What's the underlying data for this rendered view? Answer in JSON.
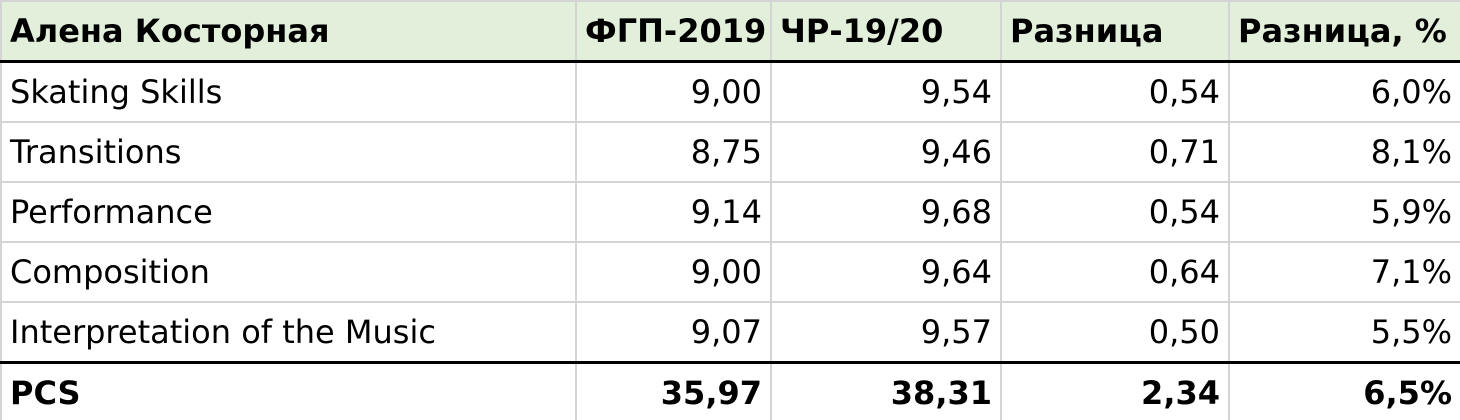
{
  "table": {
    "header": [
      "Алена Косторная",
      "ФГП-2019",
      "ЧР-19/20",
      "Разница",
      "Разница, %"
    ],
    "rows": [
      [
        "Skating Skills",
        "9,00",
        "9,54",
        "0,54",
        "6,0%"
      ],
      [
        "Transitions",
        "8,75",
        "9,46",
        "0,71",
        "8,1%"
      ],
      [
        "Performance",
        "9,14",
        "9,68",
        "0,54",
        "5,9%"
      ],
      [
        "Composition",
        "9,00",
        "9,64",
        "0,64",
        "7,1%"
      ],
      [
        "Interpretation of the Music",
        "9,07",
        "9,57",
        "0,50",
        "5,5%"
      ]
    ],
    "total": [
      "PCS",
      "35,97",
      "38,31",
      "2,34",
      "6,5%"
    ]
  }
}
